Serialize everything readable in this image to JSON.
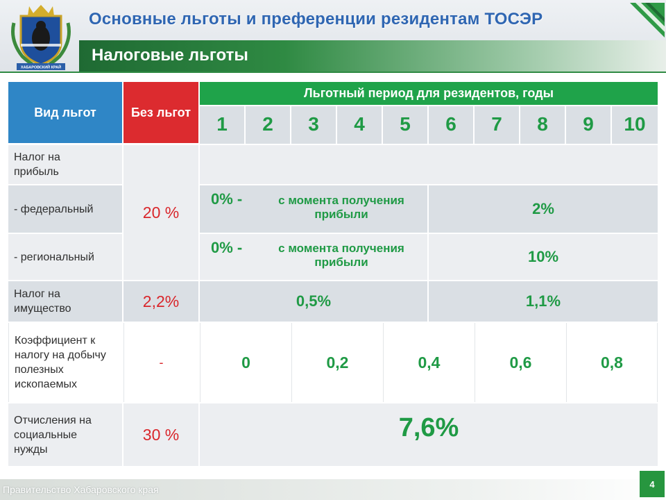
{
  "header": {
    "title": "Основные льготы и преференции резидентам ТОСЭР",
    "subtitle": "Налоговые льготы",
    "crest_text": "ХАБАРОВСКИЙ КРАЙ"
  },
  "table": {
    "col_type": "Вид льгот",
    "col_without": "Без льгот",
    "col_period": "Льготный период для резидентов, годы",
    "years": [
      "1",
      "2",
      "3",
      "4",
      "5",
      "6",
      "7",
      "8",
      "9",
      "10"
    ],
    "rows": {
      "profit_tax": "Налог на прибыль",
      "federal": "- федеральный",
      "regional": "- региональный",
      "profit_without": "20 %",
      "federal_zero": "0% -",
      "federal_note": "с момента получения прибыли",
      "federal_after": "2%",
      "regional_zero": "0% -",
      "regional_note": "с момента получения прибыли",
      "regional_after": "10%",
      "property_tax": "Налог на имущество",
      "property_without": "2,2%",
      "property_first": "0,5%",
      "property_second": "1,1%",
      "mining_coef": "Коэффициент к налогу на добычу полезных ископаемых",
      "mining_without": "-",
      "mining_values": [
        "0",
        "0,2",
        "0,4",
        "0,6",
        "0,8"
      ],
      "social": "Отчисления на социальные нужды",
      "social_without": "30 %",
      "social_period": "7,6%"
    }
  },
  "footer": {
    "text": "Правительство Хабаровского края",
    "page": "4"
  },
  "colors": {
    "title_blue": "#2f66b2",
    "header_blue": "#2f86c6",
    "header_red": "#dc2b2f",
    "header_green": "#1fa34a",
    "value_green": "#1f9a45",
    "value_red": "#d9262b"
  }
}
